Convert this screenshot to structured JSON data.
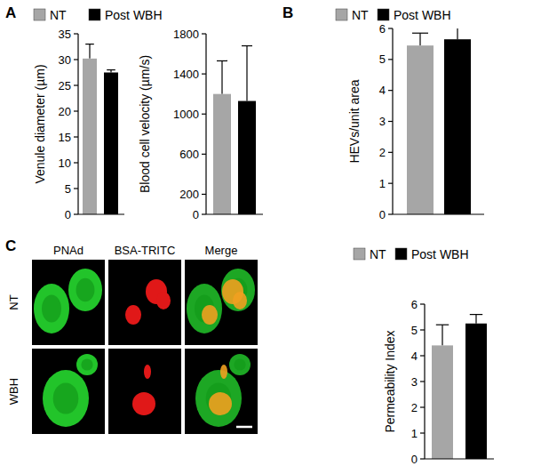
{
  "panel_letters": [
    "A",
    "B",
    "C"
  ],
  "micrographs": {
    "columns": [
      "PNAd",
      "BSA-TRITC",
      "Merge"
    ],
    "rows": [
      "NT",
      "WBH"
    ]
  },
  "chart_data": [
    {
      "type": "bar",
      "ylabel": "Venule diameter (µm)",
      "categories": [
        null
      ],
      "series": [
        {
          "name": "NT",
          "color": "#a6a6a6",
          "values": [
            30.2
          ],
          "errors": [
            2.8
          ]
        },
        {
          "name": "Post WBH",
          "color": "#000000",
          "values": [
            27.5
          ],
          "errors": [
            0.5
          ]
        }
      ],
      "ylim": [
        0,
        35
      ],
      "yticks": [
        0,
        5,
        10,
        15,
        20,
        25,
        30,
        35
      ],
      "legend": "top",
      "tick_labels": "y"
    },
    {
      "type": "bar",
      "ylabel": "Blood cell velocity (µm/s)",
      "categories": [
        null
      ],
      "series": [
        {
          "color": "#a6a6a6",
          "values": [
            1200
          ],
          "errors": [
            330
          ]
        },
        {
          "color": "#000000",
          "values": [
            1130
          ],
          "errors": [
            550
          ]
        }
      ],
      "ylim": [
        0,
        1800
      ],
      "yticks": [
        0,
        200,
        600,
        1000,
        1400,
        1800
      ],
      "tick_labels": "y"
    },
    {
      "type": "bar",
      "ylabel": "HEVs/unit area",
      "categories": [
        null
      ],
      "series": [
        {
          "name": "NT",
          "color": "#a6a6a6",
          "values": [
            5.45
          ],
          "errors": [
            0.4
          ]
        },
        {
          "name": "Post WBH",
          "color": "#000000",
          "values": [
            5.65
          ],
          "errors": [
            0.4
          ]
        }
      ],
      "ylim": [
        0,
        6
      ],
      "yticks": [
        0,
        1,
        2,
        3,
        4,
        5,
        6
      ],
      "legend": "top",
      "tick_labels": "y"
    },
    {
      "type": "bar",
      "ylabel": "Permeability Index",
      "categories": [
        null
      ],
      "series": [
        {
          "name": "NT",
          "color": "#a6a6a6",
          "values": [
            4.4
          ],
          "errors": [
            0.8
          ]
        },
        {
          "name": "Post WBH",
          "color": "#000000",
          "values": [
            5.25
          ],
          "errors": [
            0.35
          ]
        }
      ],
      "ylim": [
        0,
        6
      ],
      "yticks": [
        0,
        1,
        2,
        3,
        4,
        5,
        6
      ],
      "legend": "top",
      "tick_labels": "y"
    }
  ]
}
